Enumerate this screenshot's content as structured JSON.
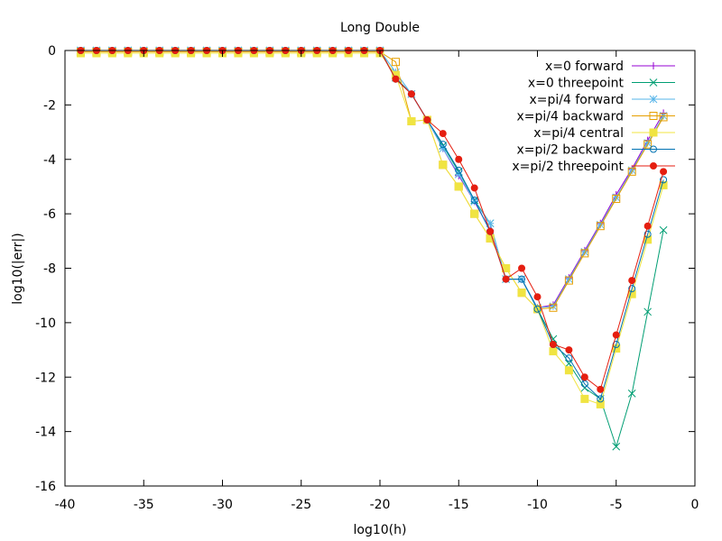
{
  "chart_data": {
    "type": "line",
    "title": "Long Double",
    "xlabel": "log10(h)",
    "ylabel": "log10(|err|)",
    "xlim": [
      -40,
      0
    ],
    "ylim": [
      -16,
      0
    ],
    "xticks": [
      -40,
      -35,
      -30,
      -25,
      -20,
      -15,
      -10,
      -5,
      0
    ],
    "yticks": [
      0,
      -2,
      -4,
      -6,
      -8,
      -10,
      -12,
      -14,
      -16
    ],
    "legend_position": "top-right",
    "grid": false,
    "series": [
      {
        "name": "x=0 forward",
        "color": "#9400d3",
        "marker": "plus",
        "points": [
          [
            -39,
            0
          ],
          [
            -38,
            0
          ],
          [
            -37,
            0
          ],
          [
            -36,
            0
          ],
          [
            -35,
            0
          ],
          [
            -34,
            0
          ],
          [
            -33,
            0
          ],
          [
            -32,
            0
          ],
          [
            -31,
            0
          ],
          [
            -30,
            0
          ],
          [
            -29,
            0
          ],
          [
            -28,
            0
          ],
          [
            -27,
            0
          ],
          [
            -26,
            0
          ],
          [
            -25,
            0
          ],
          [
            -24,
            0
          ],
          [
            -23,
            0
          ],
          [
            -22,
            0
          ],
          [
            -21,
            0
          ],
          [
            -20,
            0
          ],
          [
            -19,
            -1.0
          ],
          [
            -18,
            -1.6
          ],
          [
            -17,
            -2.55
          ],
          [
            -16,
            -3.6
          ],
          [
            -15,
            -4.6
          ],
          [
            -14,
            -5.55
          ],
          [
            -13,
            -6.6
          ],
          [
            -12,
            -8.4
          ],
          [
            -11,
            -8.4
          ],
          [
            -10,
            -9.45
          ],
          [
            -9,
            -9.35
          ],
          [
            -8,
            -8.35
          ],
          [
            -7,
            -7.35
          ],
          [
            -6,
            -6.35
          ],
          [
            -5,
            -5.3
          ],
          [
            -4,
            -4.35
          ],
          [
            -3,
            -3.3
          ],
          [
            -2,
            -2.3
          ]
        ]
      },
      {
        "name": "x=0 threepoint",
        "color": "#009e73",
        "marker": "x",
        "points": [
          [
            -39,
            0
          ],
          [
            -38,
            0
          ],
          [
            -37,
            0
          ],
          [
            -36,
            0
          ],
          [
            -35,
            0
          ],
          [
            -34,
            0
          ],
          [
            -33,
            0
          ],
          [
            -32,
            0
          ],
          [
            -31,
            0
          ],
          [
            -30,
            0
          ],
          [
            -29,
            0
          ],
          [
            -28,
            0
          ],
          [
            -27,
            0
          ],
          [
            -26,
            0
          ],
          [
            -25,
            0
          ],
          [
            -24,
            0
          ],
          [
            -23,
            0
          ],
          [
            -22,
            0
          ],
          [
            -21,
            0
          ],
          [
            -20,
            0
          ],
          [
            -19,
            -1.0
          ],
          [
            -18,
            -1.6
          ],
          [
            -17,
            -2.55
          ],
          [
            -16,
            -3.5
          ],
          [
            -15,
            -4.45
          ],
          [
            -14,
            -5.5
          ],
          [
            -13,
            -6.35
          ],
          [
            -12,
            -8.4
          ],
          [
            -11,
            -8.4
          ],
          [
            -10,
            -9.5
          ],
          [
            -9,
            -10.6
          ],
          [
            -8,
            -11.5
          ],
          [
            -7,
            -12.4
          ],
          [
            -6,
            -12.8
          ],
          [
            -5,
            -14.55
          ],
          [
            -4,
            -12.6
          ],
          [
            -3,
            -9.6
          ],
          [
            -2,
            -6.6
          ]
        ]
      },
      {
        "name": "x=pi/4 forward",
        "color": "#56b4e9",
        "marker": "star",
        "points": [
          [
            -39,
            0
          ],
          [
            -38,
            0
          ],
          [
            -37,
            0
          ],
          [
            -36,
            0
          ],
          [
            -35,
            0
          ],
          [
            -34,
            0
          ],
          [
            -33,
            0
          ],
          [
            -32,
            0
          ],
          [
            -31,
            0
          ],
          [
            -30,
            0
          ],
          [
            -29,
            0
          ],
          [
            -28,
            0
          ],
          [
            -27,
            0
          ],
          [
            -26,
            0
          ],
          [
            -25,
            0
          ],
          [
            -24,
            0
          ],
          [
            -23,
            0
          ],
          [
            -22,
            0
          ],
          [
            -21,
            0
          ],
          [
            -20,
            0
          ],
          [
            -19,
            -0.8
          ],
          [
            -18,
            -1.6
          ],
          [
            -17,
            -2.55
          ],
          [
            -16,
            -3.6
          ],
          [
            -15,
            -4.55
          ],
          [
            -14,
            -5.55
          ],
          [
            -13,
            -6.35
          ],
          [
            -12,
            -8.4
          ],
          [
            -11,
            -8.4
          ],
          [
            -10,
            -9.45
          ],
          [
            -9,
            -9.4
          ],
          [
            -8,
            -8.4
          ],
          [
            -7,
            -7.4
          ],
          [
            -6,
            -6.4
          ],
          [
            -5,
            -5.4
          ],
          [
            -4,
            -4.4
          ],
          [
            -3,
            -3.4
          ],
          [
            -2,
            -2.4
          ]
        ]
      },
      {
        "name": "x=pi/4 backward",
        "color": "#e69f00",
        "marker": "square",
        "points": [
          [
            -39,
            -0.05
          ],
          [
            -38,
            -0.05
          ],
          [
            -37,
            -0.05
          ],
          [
            -36,
            -0.05
          ],
          [
            -35,
            -0.05
          ],
          [
            -34,
            -0.05
          ],
          [
            -33,
            -0.05
          ],
          [
            -32,
            -0.05
          ],
          [
            -31,
            -0.05
          ],
          [
            -30,
            -0.05
          ],
          [
            -29,
            -0.05
          ],
          [
            -28,
            -0.05
          ],
          [
            -27,
            -0.05
          ],
          [
            -26,
            -0.05
          ],
          [
            -25,
            -0.05
          ],
          [
            -24,
            -0.05
          ],
          [
            -23,
            -0.05
          ],
          [
            -22,
            -0.05
          ],
          [
            -21,
            -0.05
          ],
          [
            -20,
            -0.05
          ],
          [
            -19,
            -0.42
          ],
          [
            -18,
            -2.6
          ],
          [
            -17,
            -2.55
          ],
          [
            -16,
            -4.2
          ],
          [
            -15,
            -5.0
          ],
          [
            -14,
            -6.0
          ],
          [
            -13,
            -6.9
          ],
          [
            -12,
            -8.0
          ],
          [
            -11,
            -8.9
          ],
          [
            -10,
            -9.5
          ],
          [
            -9,
            -9.45
          ],
          [
            -8,
            -8.45
          ],
          [
            -7,
            -7.45
          ],
          [
            -6,
            -6.45
          ],
          [
            -5,
            -5.45
          ],
          [
            -4,
            -4.45
          ],
          [
            -3,
            -3.45
          ],
          [
            -2,
            -2.45
          ]
        ]
      },
      {
        "name": "x=pi/4 central",
        "color": "#f0e442",
        "marker": "filled-square",
        "points": [
          [
            -39,
            -0.1
          ],
          [
            -38,
            -0.1
          ],
          [
            -37,
            -0.1
          ],
          [
            -36,
            -0.1
          ],
          [
            -35,
            -0.1
          ],
          [
            -34,
            -0.1
          ],
          [
            -33,
            -0.1
          ],
          [
            -32,
            -0.1
          ],
          [
            -31,
            -0.1
          ],
          [
            -30,
            -0.1
          ],
          [
            -29,
            -0.1
          ],
          [
            -28,
            -0.1
          ],
          [
            -27,
            -0.1
          ],
          [
            -26,
            -0.1
          ],
          [
            -25,
            -0.1
          ],
          [
            -24,
            -0.1
          ],
          [
            -23,
            -0.1
          ],
          [
            -22,
            -0.1
          ],
          [
            -21,
            -0.1
          ],
          [
            -20,
            -0.1
          ],
          [
            -19,
            -0.9
          ],
          [
            -18,
            -2.6
          ],
          [
            -17,
            -2.55
          ],
          [
            -16,
            -4.2
          ],
          [
            -15,
            -5.0
          ],
          [
            -14,
            -6.0
          ],
          [
            -13,
            -6.9
          ],
          [
            -12,
            -8.0
          ],
          [
            -11,
            -8.9
          ],
          [
            -10,
            -9.5
          ],
          [
            -9,
            -11.05
          ],
          [
            -8,
            -11.75
          ],
          [
            -7,
            -12.8
          ],
          [
            -6,
            -13.0
          ],
          [
            -5,
            -10.95
          ],
          [
            -4,
            -8.95
          ],
          [
            -3,
            -6.95
          ],
          [
            -2,
            -4.95
          ]
        ]
      },
      {
        "name": "x=pi/2 backward",
        "color": "#0072b2",
        "marker": "circle",
        "points": [
          [
            -39,
            0
          ],
          [
            -38,
            0
          ],
          [
            -37,
            0
          ],
          [
            -36,
            0
          ],
          [
            -35,
            0
          ],
          [
            -34,
            0
          ],
          [
            -33,
            0
          ],
          [
            -32,
            0
          ],
          [
            -31,
            0
          ],
          [
            -30,
            0
          ],
          [
            -29,
            0
          ],
          [
            -28,
            0
          ],
          [
            -27,
            0
          ],
          [
            -26,
            0
          ],
          [
            -25,
            0
          ],
          [
            -24,
            0
          ],
          [
            -23,
            0
          ],
          [
            -22,
            0
          ],
          [
            -21,
            0
          ],
          [
            -20,
            0
          ],
          [
            -19,
            -1.05
          ],
          [
            -18,
            -1.6
          ],
          [
            -17,
            -2.55
          ],
          [
            -16,
            -3.45
          ],
          [
            -15,
            -4.4
          ],
          [
            -14,
            -5.5
          ],
          [
            -13,
            -6.65
          ],
          [
            -12,
            -8.4
          ],
          [
            -11,
            -8.4
          ],
          [
            -10,
            -9.5
          ],
          [
            -9,
            -10.8
          ],
          [
            -8,
            -11.3
          ],
          [
            -7,
            -12.25
          ],
          [
            -6,
            -12.8
          ],
          [
            -5,
            -10.8
          ],
          [
            -4,
            -8.75
          ],
          [
            -3,
            -6.75
          ],
          [
            -2,
            -4.75
          ]
        ]
      },
      {
        "name": "x=pi/2 threepoint",
        "color": "#e51e10",
        "marker": "filled-circle",
        "points": [
          [
            -39,
            0
          ],
          [
            -38,
            0
          ],
          [
            -37,
            0
          ],
          [
            -36,
            0
          ],
          [
            -35,
            0
          ],
          [
            -34,
            0
          ],
          [
            -33,
            0
          ],
          [
            -32,
            0
          ],
          [
            -31,
            0
          ],
          [
            -30,
            0
          ],
          [
            -29,
            0
          ],
          [
            -28,
            0
          ],
          [
            -27,
            0
          ],
          [
            -26,
            0
          ],
          [
            -25,
            0
          ],
          [
            -24,
            0
          ],
          [
            -23,
            0
          ],
          [
            -22,
            0
          ],
          [
            -21,
            0
          ],
          [
            -20,
            0
          ],
          [
            -19,
            -1.05
          ],
          [
            -18,
            -1.6
          ],
          [
            -17,
            -2.55
          ],
          [
            -16,
            -3.05
          ],
          [
            -15,
            -4.0
          ],
          [
            -14,
            -5.05
          ],
          [
            -13,
            -6.65
          ],
          [
            -12,
            -8.4
          ],
          [
            -11,
            -8.0
          ],
          [
            -10,
            -9.05
          ],
          [
            -9,
            -10.8
          ],
          [
            -8,
            -11.0
          ],
          [
            -7,
            -12.0
          ],
          [
            -6,
            -12.45
          ],
          [
            -5,
            -10.45
          ],
          [
            -4,
            -8.45
          ],
          [
            -3,
            -6.45
          ],
          [
            -2,
            -4.45
          ]
        ]
      }
    ]
  }
}
